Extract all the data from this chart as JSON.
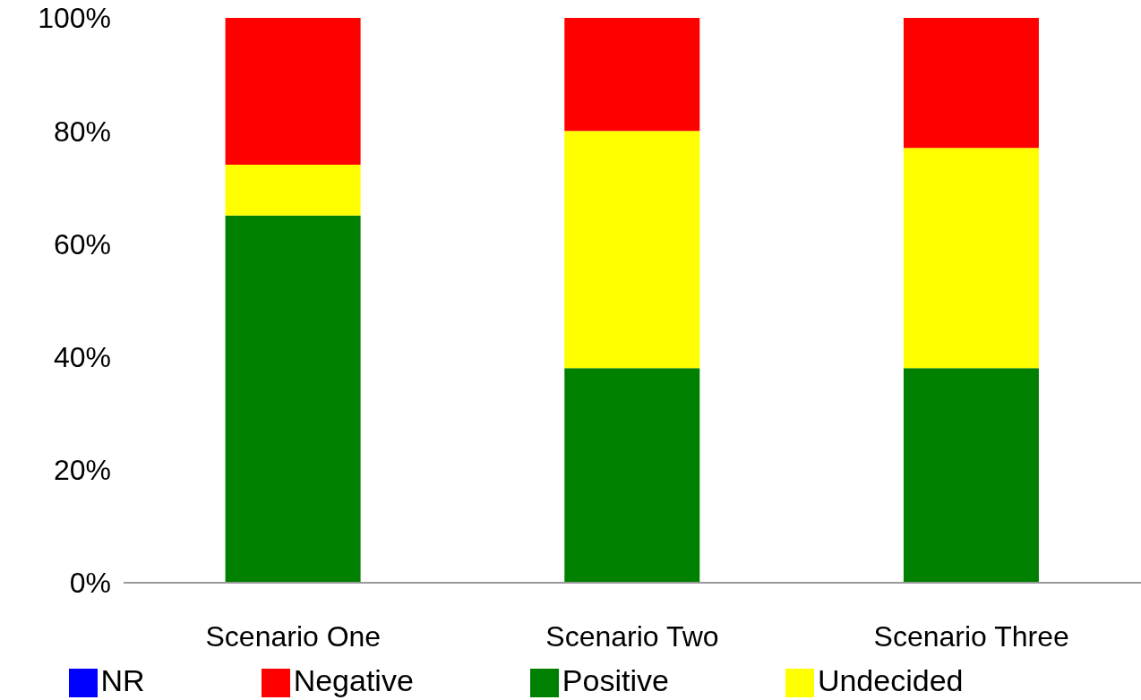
{
  "chart_data": {
    "type": "bar",
    "stacked": true,
    "categories": [
      "Scenario One",
      "Scenario Two",
      "Scenario Three"
    ],
    "series": [
      {
        "name": "Positive",
        "color": "#008000",
        "values": [
          65,
          38,
          38
        ]
      },
      {
        "name": "Undecided",
        "color": "#ffff00",
        "values": [
          9,
          42,
          39
        ]
      },
      {
        "name": "Negative",
        "color": "#ff0000",
        "values": [
          26,
          20,
          23
        ]
      },
      {
        "name": "NR",
        "color": "#0000ff",
        "values": [
          0,
          0,
          0
        ]
      }
    ],
    "ylim": [
      0,
      100
    ],
    "yticks": [
      {
        "value": 0,
        "label": "0%"
      },
      {
        "value": 20,
        "label": "20%"
      },
      {
        "value": 40,
        "label": "40%"
      },
      {
        "value": 60,
        "label": "60%"
      },
      {
        "value": 80,
        "label": "80%"
      },
      {
        "value": 100,
        "label": "100%"
      }
    ],
    "grid": false,
    "legend": "bottom"
  }
}
